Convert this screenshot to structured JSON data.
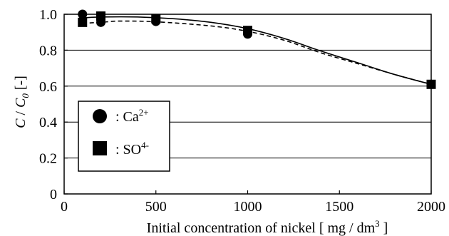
{
  "chart_data": {
    "type": "scatter",
    "xlabel": "Initial concentration of nickel",
    "xunit": "[ mg / dm",
    "xunit_sup": "3",
    "xunit_close": " ]",
    "ylabel_c": "C",
    "ylabel_slash": " / ",
    "ylabel_c0": "C",
    "ylabel_c0_sub": "0",
    "ylabel_unit": " [-]",
    "xlim": [
      0,
      2000
    ],
    "ylim": [
      0,
      1.0
    ],
    "xticks": [
      0,
      500,
      1000,
      1500,
      2000
    ],
    "xtick_labels": [
      "0",
      "500",
      "1000",
      "1500",
      "2000"
    ],
    "yticks": [
      0,
      0.2,
      0.4,
      0.6,
      0.8,
      1.0
    ],
    "ytick_labels": [
      "0",
      "0.2",
      "0.4",
      "0.6",
      "0.8",
      "1.0"
    ],
    "grid": "horizontal",
    "legend_position": "lower-left",
    "series": [
      {
        "name": ": Ca2+",
        "marker": "circle",
        "line_style": "dashed",
        "points": [
          [
            100,
            1.0
          ],
          [
            200,
            0.955
          ],
          [
            500,
            0.96
          ],
          [
            1000,
            0.89
          ],
          [
            2000,
            0.61
          ]
        ],
        "curve": [
          [
            100,
            0.95
          ],
          [
            200,
            0.955
          ],
          [
            300,
            0.962
          ],
          [
            500,
            0.958
          ],
          [
            800,
            0.935
          ],
          [
            1000,
            0.905
          ],
          [
            1200,
            0.855
          ],
          [
            1400,
            0.785
          ],
          [
            1600,
            0.725
          ],
          [
            1800,
            0.665
          ],
          [
            2000,
            0.61
          ]
        ]
      },
      {
        "name": ": SO4-",
        "marker": "square",
        "line_style": "solid",
        "points": [
          [
            100,
            0.955
          ],
          [
            200,
            0.99
          ],
          [
            500,
            0.975
          ],
          [
            1000,
            0.91
          ],
          [
            2000,
            0.61
          ]
        ],
        "curve": [
          [
            100,
            0.98
          ],
          [
            200,
            0.985
          ],
          [
            400,
            0.985
          ],
          [
            600,
            0.975
          ],
          [
            800,
            0.955
          ],
          [
            1000,
            0.92
          ],
          [
            1200,
            0.865
          ],
          [
            1400,
            0.795
          ],
          [
            1600,
            0.73
          ],
          [
            1800,
            0.665
          ],
          [
            2000,
            0.61
          ]
        ]
      }
    ]
  },
  "legend": {
    "ca_prefix": ": Ca",
    "ca_sup": "2+",
    "so_prefix": ": SO",
    "so_sup": "4-"
  }
}
